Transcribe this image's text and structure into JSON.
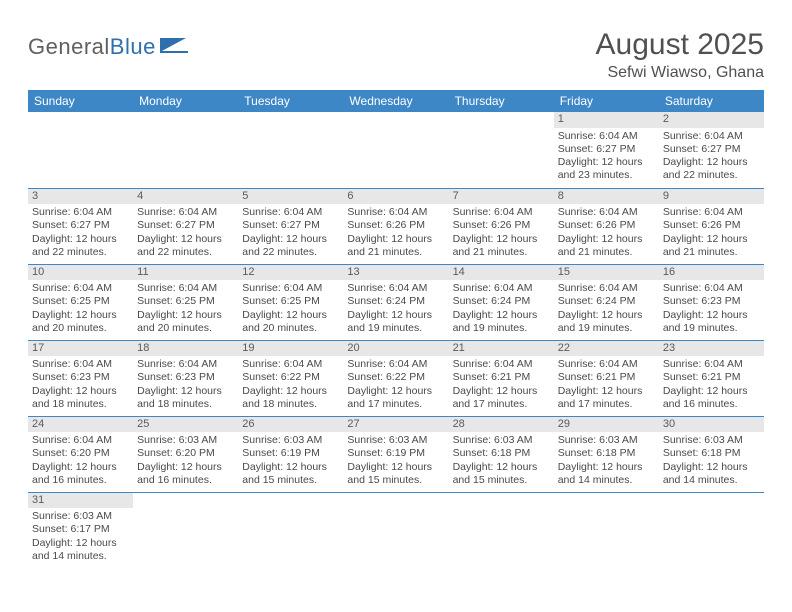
{
  "logo": {
    "text_a": "General",
    "text_b": "Blue"
  },
  "title": "August 2025",
  "location": "Sefwi Wiawso, Ghana",
  "colors": {
    "header_bg": "#3d87c7",
    "header_text": "#ffffff",
    "daynum_bg": "#e7e7e7",
    "cell_border": "#3d87c7",
    "body_text": "#4a4a4a",
    "title_text": "#505050"
  },
  "day_headers": [
    "Sunday",
    "Monday",
    "Tuesday",
    "Wednesday",
    "Thursday",
    "Friday",
    "Saturday"
  ],
  "weeks": [
    [
      null,
      null,
      null,
      null,
      null,
      {
        "n": "1",
        "sr": "Sunrise: 6:04 AM",
        "ss": "Sunset: 6:27 PM",
        "dl1": "Daylight: 12 hours",
        "dl2": "and 23 minutes."
      },
      {
        "n": "2",
        "sr": "Sunrise: 6:04 AM",
        "ss": "Sunset: 6:27 PM",
        "dl1": "Daylight: 12 hours",
        "dl2": "and 22 minutes."
      }
    ],
    [
      {
        "n": "3",
        "sr": "Sunrise: 6:04 AM",
        "ss": "Sunset: 6:27 PM",
        "dl1": "Daylight: 12 hours",
        "dl2": "and 22 minutes."
      },
      {
        "n": "4",
        "sr": "Sunrise: 6:04 AM",
        "ss": "Sunset: 6:27 PM",
        "dl1": "Daylight: 12 hours",
        "dl2": "and 22 minutes."
      },
      {
        "n": "5",
        "sr": "Sunrise: 6:04 AM",
        "ss": "Sunset: 6:27 PM",
        "dl1": "Daylight: 12 hours",
        "dl2": "and 22 minutes."
      },
      {
        "n": "6",
        "sr": "Sunrise: 6:04 AM",
        "ss": "Sunset: 6:26 PM",
        "dl1": "Daylight: 12 hours",
        "dl2": "and 21 minutes."
      },
      {
        "n": "7",
        "sr": "Sunrise: 6:04 AM",
        "ss": "Sunset: 6:26 PM",
        "dl1": "Daylight: 12 hours",
        "dl2": "and 21 minutes."
      },
      {
        "n": "8",
        "sr": "Sunrise: 6:04 AM",
        "ss": "Sunset: 6:26 PM",
        "dl1": "Daylight: 12 hours",
        "dl2": "and 21 minutes."
      },
      {
        "n": "9",
        "sr": "Sunrise: 6:04 AM",
        "ss": "Sunset: 6:26 PM",
        "dl1": "Daylight: 12 hours",
        "dl2": "and 21 minutes."
      }
    ],
    [
      {
        "n": "10",
        "sr": "Sunrise: 6:04 AM",
        "ss": "Sunset: 6:25 PM",
        "dl1": "Daylight: 12 hours",
        "dl2": "and 20 minutes."
      },
      {
        "n": "11",
        "sr": "Sunrise: 6:04 AM",
        "ss": "Sunset: 6:25 PM",
        "dl1": "Daylight: 12 hours",
        "dl2": "and 20 minutes."
      },
      {
        "n": "12",
        "sr": "Sunrise: 6:04 AM",
        "ss": "Sunset: 6:25 PM",
        "dl1": "Daylight: 12 hours",
        "dl2": "and 20 minutes."
      },
      {
        "n": "13",
        "sr": "Sunrise: 6:04 AM",
        "ss": "Sunset: 6:24 PM",
        "dl1": "Daylight: 12 hours",
        "dl2": "and 19 minutes."
      },
      {
        "n": "14",
        "sr": "Sunrise: 6:04 AM",
        "ss": "Sunset: 6:24 PM",
        "dl1": "Daylight: 12 hours",
        "dl2": "and 19 minutes."
      },
      {
        "n": "15",
        "sr": "Sunrise: 6:04 AM",
        "ss": "Sunset: 6:24 PM",
        "dl1": "Daylight: 12 hours",
        "dl2": "and 19 minutes."
      },
      {
        "n": "16",
        "sr": "Sunrise: 6:04 AM",
        "ss": "Sunset: 6:23 PM",
        "dl1": "Daylight: 12 hours",
        "dl2": "and 19 minutes."
      }
    ],
    [
      {
        "n": "17",
        "sr": "Sunrise: 6:04 AM",
        "ss": "Sunset: 6:23 PM",
        "dl1": "Daylight: 12 hours",
        "dl2": "and 18 minutes."
      },
      {
        "n": "18",
        "sr": "Sunrise: 6:04 AM",
        "ss": "Sunset: 6:23 PM",
        "dl1": "Daylight: 12 hours",
        "dl2": "and 18 minutes."
      },
      {
        "n": "19",
        "sr": "Sunrise: 6:04 AM",
        "ss": "Sunset: 6:22 PM",
        "dl1": "Daylight: 12 hours",
        "dl2": "and 18 minutes."
      },
      {
        "n": "20",
        "sr": "Sunrise: 6:04 AM",
        "ss": "Sunset: 6:22 PM",
        "dl1": "Daylight: 12 hours",
        "dl2": "and 17 minutes."
      },
      {
        "n": "21",
        "sr": "Sunrise: 6:04 AM",
        "ss": "Sunset: 6:21 PM",
        "dl1": "Daylight: 12 hours",
        "dl2": "and 17 minutes."
      },
      {
        "n": "22",
        "sr": "Sunrise: 6:04 AM",
        "ss": "Sunset: 6:21 PM",
        "dl1": "Daylight: 12 hours",
        "dl2": "and 17 minutes."
      },
      {
        "n": "23",
        "sr": "Sunrise: 6:04 AM",
        "ss": "Sunset: 6:21 PM",
        "dl1": "Daylight: 12 hours",
        "dl2": "and 16 minutes."
      }
    ],
    [
      {
        "n": "24",
        "sr": "Sunrise: 6:04 AM",
        "ss": "Sunset: 6:20 PM",
        "dl1": "Daylight: 12 hours",
        "dl2": "and 16 minutes."
      },
      {
        "n": "25",
        "sr": "Sunrise: 6:03 AM",
        "ss": "Sunset: 6:20 PM",
        "dl1": "Daylight: 12 hours",
        "dl2": "and 16 minutes."
      },
      {
        "n": "26",
        "sr": "Sunrise: 6:03 AM",
        "ss": "Sunset: 6:19 PM",
        "dl1": "Daylight: 12 hours",
        "dl2": "and 15 minutes."
      },
      {
        "n": "27",
        "sr": "Sunrise: 6:03 AM",
        "ss": "Sunset: 6:19 PM",
        "dl1": "Daylight: 12 hours",
        "dl2": "and 15 minutes."
      },
      {
        "n": "28",
        "sr": "Sunrise: 6:03 AM",
        "ss": "Sunset: 6:18 PM",
        "dl1": "Daylight: 12 hours",
        "dl2": "and 15 minutes."
      },
      {
        "n": "29",
        "sr": "Sunrise: 6:03 AM",
        "ss": "Sunset: 6:18 PM",
        "dl1": "Daylight: 12 hours",
        "dl2": "and 14 minutes."
      },
      {
        "n": "30",
        "sr": "Sunrise: 6:03 AM",
        "ss": "Sunset: 6:18 PM",
        "dl1": "Daylight: 12 hours",
        "dl2": "and 14 minutes."
      }
    ],
    [
      {
        "n": "31",
        "sr": "Sunrise: 6:03 AM",
        "ss": "Sunset: 6:17 PM",
        "dl1": "Daylight: 12 hours",
        "dl2": "and 14 minutes."
      },
      null,
      null,
      null,
      null,
      null,
      null
    ]
  ]
}
